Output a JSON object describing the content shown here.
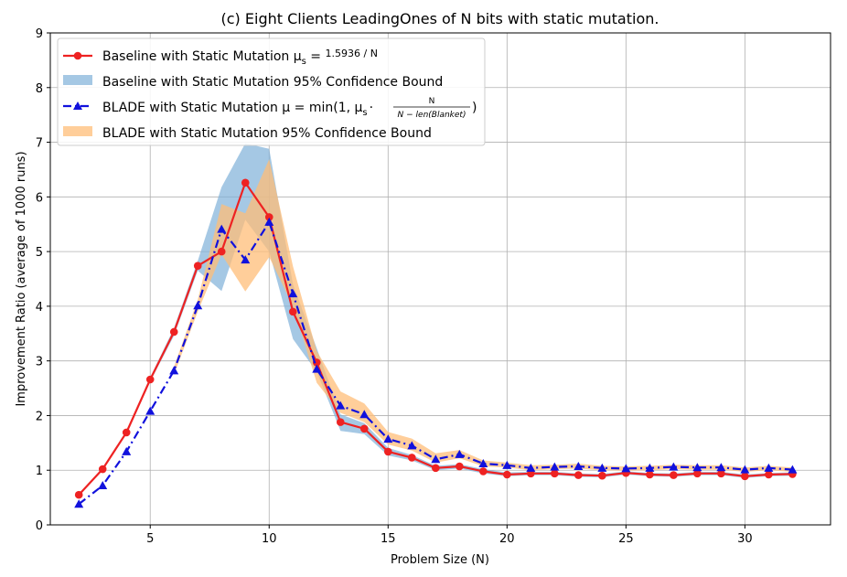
{
  "chart_data": {
    "type": "line",
    "title": "(c) Eight Clients LeadingOnes of N bits with static mutation.",
    "xlabel": "Problem Size (N)",
    "ylabel": "Improvement Ratio (average of 1000 runs)",
    "xlim": [
      0.8,
      33.6
    ],
    "ylim": [
      0,
      9
    ],
    "xticks": [
      5,
      10,
      15,
      20,
      25,
      30
    ],
    "yticks": [
      0,
      1,
      2,
      3,
      4,
      5,
      6,
      7,
      8,
      9
    ],
    "grid": true,
    "legend_position": "top-left",
    "x": [
      2,
      3,
      4,
      5,
      6,
      7,
      8,
      9,
      10,
      11,
      12,
      13,
      14,
      15,
      16,
      17,
      18,
      19,
      20,
      21,
      22,
      23,
      24,
      25,
      26,
      27,
      28,
      29,
      30,
      31,
      32
    ],
    "series": [
      {
        "name": "Baseline with Static Mutation μs = 1.5936 / N",
        "legend_text": "Baseline with Static Mutation μ",
        "legend_sub": "s",
        "legend_formula": "1.5936 / N",
        "color": "#ee2222",
        "marker": "circle",
        "style": "solid",
        "values": [
          0.55,
          1.02,
          1.69,
          2.66,
          3.53,
          4.74,
          5.0,
          6.26,
          5.63,
          3.9,
          2.97,
          1.88,
          1.76,
          1.34,
          1.23,
          1.04,
          1.07,
          0.98,
          0.92,
          0.94,
          0.94,
          0.91,
          0.9,
          0.95,
          0.92,
          0.91,
          0.94,
          0.94,
          0.89,
          0.92,
          0.93
        ]
      },
      {
        "name": "BLADE with Static Mutation μ = min(1, μs · N / (N − len(Blanket)))",
        "legend_text": "BLADE with Static Mutation μ = min(1, μ",
        "legend_sub": "s",
        "legend_dot": "·",
        "legend_num": "N",
        "legend_den": "N − len(Blanket)",
        "legend_close": ")",
        "color": "#1111dd",
        "marker": "triangle",
        "style": "dashdot",
        "values": [
          0.38,
          0.72,
          1.34,
          2.08,
          2.82,
          4.01,
          5.41,
          4.85,
          5.54,
          4.23,
          2.85,
          2.18,
          2.02,
          1.57,
          1.45,
          1.2,
          1.29,
          1.12,
          1.09,
          1.04,
          1.06,
          1.07,
          1.04,
          1.03,
          1.04,
          1.06,
          1.05,
          1.05,
          1.01,
          1.04,
          1.01
        ]
      }
    ],
    "bands": [
      {
        "name": "Baseline with Static Mutation 95% Confidence Bound",
        "color": "#7fb0d8",
        "opacity": 0.7,
        "x": [
          5,
          6,
          7,
          8,
          9,
          10,
          11,
          12,
          13,
          14,
          15,
          16,
          17,
          18,
          19,
          20,
          21,
          22,
          23,
          24,
          25,
          26,
          27,
          28,
          29,
          30,
          31,
          32
        ],
        "lower": [
          2.62,
          3.46,
          4.65,
          4.28,
          5.58,
          5.0,
          3.4,
          2.8,
          1.72,
          1.66,
          1.27,
          1.18,
          1.0,
          1.03,
          0.94,
          0.89,
          0.91,
          0.91,
          0.88,
          0.87,
          0.92,
          0.89,
          0.88,
          0.91,
          0.91,
          0.86,
          0.89,
          0.9
        ],
        "upper": [
          2.7,
          3.6,
          4.83,
          6.18,
          6.98,
          6.88,
          4.4,
          3.23,
          2.02,
          1.86,
          1.41,
          1.28,
          1.08,
          1.11,
          1.02,
          0.96,
          0.97,
          0.97,
          0.94,
          0.93,
          0.98,
          0.95,
          0.94,
          0.97,
          0.97,
          0.92,
          0.95,
          0.96
        ]
      },
      {
        "name": "BLADE with Static Mutation 95% Confidence Bound",
        "color": "#ffbe78",
        "opacity": 0.75,
        "x": [
          6,
          7,
          8,
          9,
          10,
          11,
          12,
          13,
          14,
          15,
          16,
          17,
          18,
          19,
          20,
          21,
          22,
          23,
          24,
          25,
          26,
          27,
          28,
          29,
          30,
          31,
          32
        ],
        "lower": [
          2.75,
          3.9,
          4.95,
          4.27,
          4.9,
          4.0,
          2.6,
          2.05,
          1.88,
          1.47,
          1.36,
          1.14,
          1.22,
          1.07,
          1.05,
          1.0,
          1.02,
          1.03,
          1.0,
          0.99,
          1.0,
          1.02,
          1.01,
          1.01,
          0.97,
          1.0,
          0.97
        ],
        "upper": [
          2.89,
          4.12,
          5.87,
          5.7,
          6.69,
          4.73,
          3.18,
          2.44,
          2.22,
          1.7,
          1.58,
          1.31,
          1.37,
          1.18,
          1.14,
          1.09,
          1.1,
          1.12,
          1.08,
          1.07,
          1.08,
          1.1,
          1.09,
          1.09,
          1.05,
          1.08,
          1.05
        ]
      }
    ]
  }
}
